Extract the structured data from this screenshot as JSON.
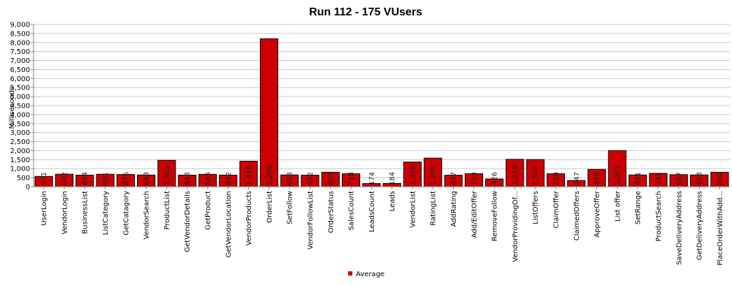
{
  "chart_data": {
    "type": "bar",
    "title": "Run 112 - 175 VUsers",
    "xlabel": "",
    "ylabel": "Milliseconds",
    "ylim": [
      0,
      9000
    ],
    "ytick_step": 500,
    "ytick_labels": [
      "0",
      "500",
      "1,000",
      "1,500",
      "2,000",
      "2,500",
      "3,000",
      "3,500",
      "4,000",
      "4,500",
      "5,000",
      "5,500",
      "6,000",
      "6,500",
      "7,000",
      "7,500",
      "8,000",
      "8,500",
      "9,000"
    ],
    "grid": true,
    "legend_position": "bottom-center",
    "categories": [
      "UserLogin",
      "VendorLogin",
      "BusinessList",
      "ListCategory",
      "GetCatagory",
      "VendorSearch",
      "ProductList",
      "GetVendorDetails",
      "GetProduct",
      "GetVendorLocation",
      "VendorProducts",
      "OrderList",
      "SetFollow",
      "VendorFollowList",
      "OrderStatus",
      "SalesCount",
      "LeadsCount",
      "Leads",
      "VendorList",
      "RatingList",
      "AddRating",
      "Add/EditOffer",
      "RemoveFollow",
      "VendorProvidingOf...",
      "ListOffers",
      "ClaimOffer",
      "ClaimedOffers",
      "ApproveOffer",
      "List offer",
      "SetRange",
      "ProductSearch",
      "SaveDeliveryAddress",
      "GetDeliveryAddress",
      "PlaceOrderWithAdd..."
    ],
    "series": [
      {
        "name": "Average",
        "color": "#cc0000",
        "values": [
          571,
          692,
          644,
          691,
          676,
          648,
          1462,
          643,
          685,
          642,
          1416,
          8208,
          653,
          642,
          801,
          718,
          174,
          184,
          1368,
          1585,
          637,
          723,
          426,
          1519,
          1507,
          720,
          347,
          958,
          2003,
          651,
          741,
          667,
          653,
          800
        ],
        "labels": [
          "571",
          "692",
          "644",
          "691",
          "676",
          "648",
          "1,462",
          "643",
          "685",
          "642",
          "1,416",
          "8,208",
          "653",
          "642",
          "801",
          "718",
          "174",
          "184",
          "1,368",
          "1,585",
          "637",
          "723",
          "426",
          "1,519",
          "1,507",
          "720",
          "347",
          "958",
          "2,003",
          "651",
          "741",
          "667",
          "653",
          "800"
        ]
      }
    ],
    "colors": {
      "bar": "#cc0000",
      "grid": "#c8c8c8",
      "axis": "#808080"
    }
  }
}
